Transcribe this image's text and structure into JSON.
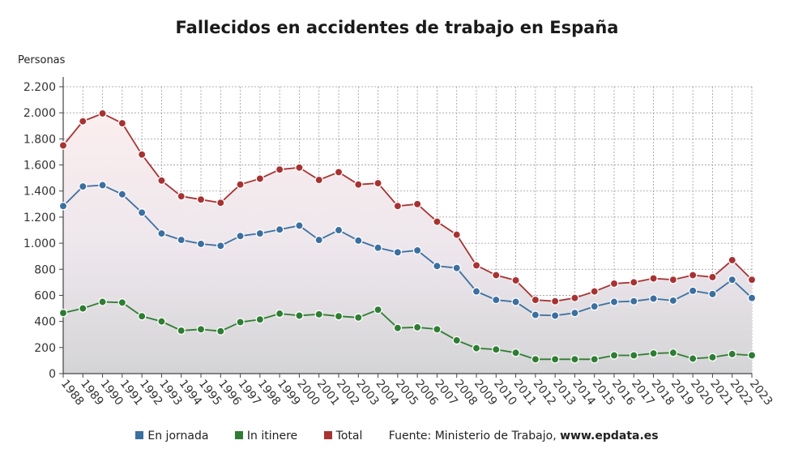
{
  "chart_data": {
    "type": "area",
    "title": "Fallecidos en accidentes de trabajo en España",
    "ylabel": "Personas",
    "xlabel": "",
    "ylim": [
      0,
      2200
    ],
    "yticks": [
      0,
      200,
      400,
      600,
      800,
      1000,
      1200,
      1400,
      1600,
      1800,
      2000,
      2200
    ],
    "ytick_labels": [
      "0",
      "200",
      "400",
      "600",
      "800",
      "1.000",
      "1.200",
      "1.400",
      "1.600",
      "1.800",
      "2.000",
      "2.200"
    ],
    "grid": true,
    "legend_position": "bottom",
    "x": [
      "1988",
      "1989",
      "1990",
      "1991",
      "1992",
      "1993",
      "1994",
      "1995",
      "1996",
      "1997",
      "1998",
      "1999",
      "2000",
      "2001",
      "2002",
      "2003",
      "2004",
      "2005",
      "2006",
      "2007",
      "2008",
      "2009",
      "2010",
      "2011",
      "2012",
      "2013",
      "2014",
      "2015",
      "2016",
      "2017",
      "2018",
      "2019",
      "2020",
      "2021",
      "2022",
      "2023"
    ],
    "series": [
      {
        "name": "En jornada",
        "color": "#3b6fa0",
        "values": [
          1285,
          1435,
          1445,
          1375,
          1235,
          1075,
          1025,
          995,
          980,
          1055,
          1075,
          1105,
          1135,
          1025,
          1100,
          1020,
          965,
          930,
          945,
          825,
          810,
          630,
          565,
          550,
          450,
          445,
          465,
          515,
          550,
          555,
          575,
          560,
          635,
          610,
          720,
          580
        ]
      },
      {
        "name": "In itinere",
        "color": "#2e7d32",
        "values": [
          465,
          500,
          550,
          545,
          440,
          400,
          330,
          340,
          325,
          395,
          415,
          460,
          445,
          455,
          440,
          430,
          490,
          350,
          355,
          340,
          255,
          195,
          185,
          160,
          110,
          110,
          110,
          110,
          140,
          140,
          155,
          160,
          115,
          125,
          150,
          140
        ]
      },
      {
        "name": "Total",
        "color": "#a83232",
        "values": [
          1750,
          1935,
          1995,
          1920,
          1680,
          1480,
          1360,
          1335,
          1310,
          1450,
          1495,
          1565,
          1580,
          1485,
          1545,
          1450,
          1460,
          1285,
          1300,
          1165,
          1065,
          830,
          755,
          715,
          565,
          555,
          580,
          630,
          690,
          700,
          730,
          720,
          755,
          740,
          870,
          720
        ]
      }
    ]
  },
  "legend": {
    "items": [
      {
        "label": "En jornada",
        "color": "#3b6fa0"
      },
      {
        "label": "In itinere",
        "color": "#2e7d32"
      },
      {
        "label": "Total",
        "color": "#a83232"
      }
    ],
    "source_prefix": "Fuente: Ministerio de Trabajo, ",
    "source_site": "www.epdata.es"
  }
}
